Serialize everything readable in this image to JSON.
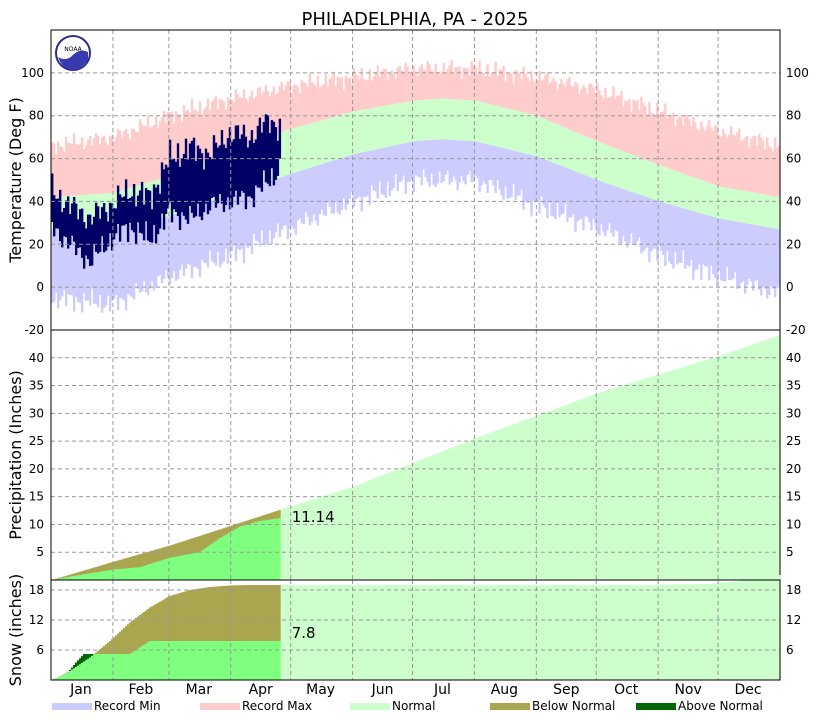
{
  "title": "PHILADELPHIA, PA - 2025",
  "logo_text": "NOAA",
  "months": [
    "Jan",
    "Feb",
    "Mar",
    "Apr",
    "May",
    "Jun",
    "Jul",
    "Aug",
    "Sep",
    "Oct",
    "Nov",
    "Dec"
  ],
  "legend": [
    {
      "label": "Record Min",
      "color": "#ccccff"
    },
    {
      "label": "Record Max",
      "color": "#ffcccc"
    },
    {
      "label": "Normal",
      "color": "#ccffcc"
    },
    {
      "label": "Below Normal",
      "color": "#aaa650"
    },
    {
      "label": "Above Normal",
      "color": "#006600"
    }
  ],
  "colors": {
    "record_min": "#ccccff",
    "record_max": "#ffcccc",
    "normal": "#ccffcc",
    "observed_temp": "#000066",
    "observed_precip": "#7eff7e",
    "below_normal": "#aaa650",
    "above_normal": "#006600",
    "grid": "#999999"
  },
  "chart_data": [
    {
      "type": "area",
      "name": "temperature",
      "ylabel": "Temperature (Deg F)",
      "ylim": [
        -20,
        120
      ],
      "yticks": [
        -20,
        0,
        20,
        40,
        60,
        80,
        100
      ],
      "ytick_labels": [
        "-20",
        "0",
        "20",
        "40",
        "60",
        "80",
        "100"
      ],
      "x_unit": "day of year",
      "xlim": [
        1,
        365
      ],
      "normal_high": {
        "x": [
          1,
          32,
          60,
          91,
          121,
          152,
          182,
          196,
          213,
          244,
          274,
          305,
          335,
          365
        ],
        "y": [
          42,
          44,
          52,
          64,
          74,
          82,
          87,
          88,
          87,
          80,
          68,
          57,
          47,
          42
        ]
      },
      "normal_low": {
        "x": [
          1,
          32,
          60,
          91,
          121,
          152,
          182,
          196,
          213,
          244,
          274,
          305,
          335,
          365
        ],
        "y": [
          27,
          28,
          33,
          43,
          53,
          62,
          68,
          69,
          68,
          61,
          50,
          40,
          32,
          27
        ]
      },
      "record_high": {
        "x": [
          1,
          32,
          60,
          91,
          121,
          152,
          182,
          213,
          244,
          274,
          305,
          335,
          365
        ],
        "y": [
          66,
          70,
          80,
          88,
          94,
          98,
          102,
          102,
          98,
          92,
          82,
          73,
          66
        ]
      },
      "record_low": {
        "x": [
          1,
          32,
          60,
          91,
          121,
          152,
          182,
          213,
          244,
          274,
          305,
          335,
          365
        ],
        "y": [
          -5,
          -8,
          5,
          15,
          28,
          40,
          50,
          50,
          38,
          28,
          15,
          5,
          -3
        ]
      },
      "observed_high": {
        "x": [
          1,
          10,
          20,
          30,
          40,
          50,
          60,
          70,
          80,
          90,
          100,
          110,
          115
        ],
        "y": [
          45,
          38,
          32,
          38,
          45,
          42,
          60,
          65,
          62,
          72,
          70,
          78,
          75
        ]
      },
      "observed_low": {
        "x": [
          1,
          10,
          20,
          30,
          40,
          50,
          60,
          70,
          80,
          90,
          100,
          110,
          115
        ],
        "y": [
          28,
          20,
          12,
          22,
          28,
          22,
          35,
          32,
          38,
          40,
          42,
          50,
          55
        ]
      },
      "observed_last_day": 115
    },
    {
      "type": "area",
      "name": "precipitation",
      "ylabel": "Precipitation (Inches)",
      "ylim": [
        0,
        45
      ],
      "yticks": [
        5,
        10,
        15,
        20,
        25,
        30,
        35,
        40
      ],
      "ytick_labels": [
        "5",
        "10",
        "15",
        "20",
        "25",
        "30",
        "35",
        "40"
      ],
      "xlim": [
        1,
        365
      ],
      "normal_cumulative": {
        "x": [
          1,
          32,
          60,
          91,
          121,
          152,
          182,
          213,
          244,
          274,
          305,
          335,
          365
        ],
        "y": [
          0,
          3.3,
          6.2,
          9.8,
          13.3,
          16.8,
          21.1,
          25.5,
          29.6,
          33.6,
          37.0,
          40.3,
          44.0
        ]
      },
      "observed_cumulative": {
        "x": [
          1,
          15,
          32,
          45,
          60,
          75,
          85,
          95,
          105,
          115
        ],
        "y": [
          0,
          0.9,
          1.9,
          2.3,
          4.0,
          5.0,
          7.5,
          9.6,
          10.6,
          11.14
        ]
      },
      "observed_last_day": 115,
      "annotation": "11.14"
    },
    {
      "type": "area",
      "name": "snow",
      "ylabel": "Snow (inches)",
      "ylim": [
        0,
        20
      ],
      "yticks": [
        6,
        12,
        18
      ],
      "ytick_labels": [
        "6",
        "12",
        "18"
      ],
      "xlim": [
        1,
        365
      ],
      "normal_cumulative": {
        "x": [
          1,
          10,
          20,
          30,
          40,
          50,
          60,
          70,
          80,
          90,
          100,
          115,
          300,
          330,
          345,
          365
        ],
        "y": [
          0,
          1.8,
          4.5,
          7.8,
          11.5,
          14.5,
          16.8,
          18.0,
          18.6,
          18.9,
          19.0,
          19.0,
          19.0,
          19.2,
          19.8,
          21.0
        ]
      },
      "observed_cumulative": {
        "x": [
          1,
          5,
          9,
          13,
          17,
          40,
          50,
          85,
          115
        ],
        "y": [
          0,
          0.8,
          1.5,
          3.5,
          5.2,
          5.2,
          7.8,
          7.8,
          7.8
        ]
      },
      "observed_last_day": 115,
      "annotation": "7.8"
    }
  ]
}
